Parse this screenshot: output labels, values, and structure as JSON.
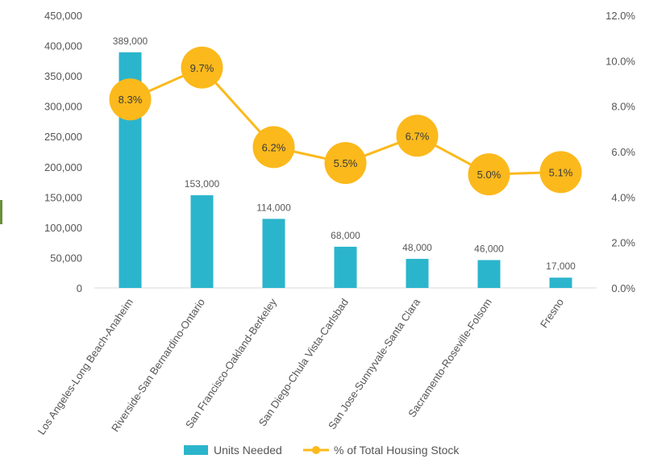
{
  "chart_data": {
    "type": "bar+line",
    "categories": [
      "Los Angeles-Long Beach-Anaheim",
      "Riverside-San Bernardino-Ontario",
      "San Francisco-Oakland-Berkeley",
      "San Diego-Chula Vista-Carlsbad",
      "San Jose-Sunnyvale-Santa Clara",
      "Sacramento-Roseville-Folsom",
      "Fresno"
    ],
    "series": [
      {
        "name": "Units Needed",
        "type": "bar",
        "axis": "left",
        "color": "#2bb5cc",
        "values": [
          389000,
          153000,
          114000,
          68000,
          48000,
          46000,
          17000
        ],
        "labels": [
          "389,000",
          "153,000",
          "114,000",
          "68,000",
          "48,000",
          "46,000",
          "17,000"
        ]
      },
      {
        "name": "% of Total Housing Stock",
        "type": "line",
        "axis": "right",
        "color": "#fbb91c",
        "values": [
          8.3,
          9.7,
          6.2,
          5.5,
          6.7,
          5.0,
          5.1
        ],
        "labels": [
          "8.3%",
          "9.7%",
          "6.2%",
          "5.5%",
          "6.7%",
          "5.0%",
          "5.1%"
        ]
      }
    ],
    "y_left": {
      "min": 0,
      "max": 450000,
      "ticks": [
        0,
        50000,
        100000,
        150000,
        200000,
        250000,
        300000,
        350000,
        400000,
        450000
      ],
      "tick_labels": [
        "0",
        "50,000",
        "100,000",
        "150,000",
        "200,000",
        "250,000",
        "300,000",
        "350,000",
        "400,000",
        "450,000"
      ]
    },
    "y_right": {
      "min": 0,
      "max": 12,
      "ticks": [
        0,
        2,
        4,
        6,
        8,
        10,
        12
      ],
      "tick_labels": [
        "0.0%",
        "2.0%",
        "4.0%",
        "6.0%",
        "8.0%",
        "10.0%",
        "12.0%"
      ]
    },
    "grid": false,
    "legend": {
      "position": "bottom",
      "entries": [
        "Units Needed",
        "% of Total Housing Stock"
      ]
    },
    "colors": {
      "axis_text": "#555555",
      "axis_line": "#d9d9d9",
      "label_text": "#595959",
      "marker_text": "#3a3a3a"
    }
  }
}
